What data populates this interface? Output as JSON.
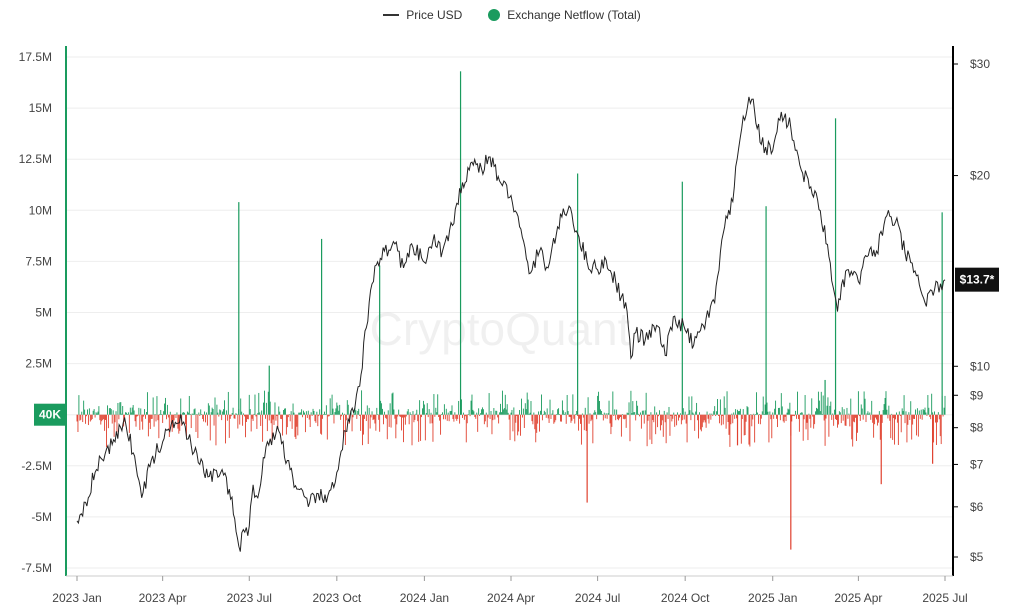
{
  "legend": {
    "price_label": "Price USD",
    "netflow_label": "Exchange Netflow (Total)",
    "price_color": "#333333",
    "netflow_color": "#1a9b5e"
  },
  "watermark": "CryptoQuant",
  "chart_data": {
    "type": "bar+line",
    "x_tick_labels": [
      "2023 Jan",
      "2023 Apr",
      "2023 Jul",
      "2023 Oct",
      "2024 Jan",
      "2024 Apr",
      "2024 Jul",
      "2024 Oct",
      "2025 Jan",
      "2025 Apr",
      "2025 Jul"
    ],
    "left_axis": {
      "ticks": [
        17.5,
        15,
        12.5,
        10,
        7.5,
        5,
        2.5,
        0,
        -2.5,
        -5,
        -7.5
      ],
      "tick_labels": [
        "17.5M",
        "15M",
        "12.5M",
        "10M",
        "7.5M",
        "5M",
        "2.5M",
        "",
        "-2.5M",
        "-5M",
        "-7.5M"
      ],
      "ylim": [
        -7.75,
        18.5
      ],
      "unit": "tokens"
    },
    "right_axis": {
      "scale": "log",
      "ticks": [
        30,
        20,
        10,
        9,
        8,
        7,
        6,
        5
      ],
      "tick_labels": [
        "$30",
        "$20",
        "$10",
        "$9",
        "$8",
        "$7",
        "$6",
        "$5"
      ],
      "ylim": [
        4.8,
        31
      ]
    },
    "current_value_badge": "40K",
    "current_price_badge": "$13.7*",
    "colors": {
      "positive": "#1a9b5e",
      "negative": "#e0402e",
      "price": "#222222",
      "axis_accent": "#1a9b5e"
    },
    "price_series": {
      "name": "Price USD",
      "points": [
        [
          "2023-01-01",
          5.7
        ],
        [
          "2023-01-10",
          6.1
        ],
        [
          "2023-01-20",
          6.8
        ],
        [
          "2023-02-01",
          7.4
        ],
        [
          "2023-02-10",
          7.6
        ],
        [
          "2023-02-20",
          8.3
        ],
        [
          "2023-03-01",
          7.3
        ],
        [
          "2023-03-10",
          6.2
        ],
        [
          "2023-03-20",
          7.1
        ],
        [
          "2023-04-01",
          7.6
        ],
        [
          "2023-04-10",
          8.1
        ],
        [
          "2023-04-20",
          8.4
        ],
        [
          "2023-05-01",
          7.5
        ],
        [
          "2023-05-10",
          7.0
        ],
        [
          "2023-05-20",
          6.7
        ],
        [
          "2023-06-01",
          6.8
        ],
        [
          "2023-06-10",
          6.4
        ],
        [
          "2023-06-20",
          5.2
        ],
        [
          "2023-07-01",
          5.6
        ],
        [
          "2023-07-05",
          6.5
        ],
        [
          "2023-07-10",
          6.2
        ],
        [
          "2023-07-20",
          7.6
        ],
        [
          "2023-08-01",
          7.9
        ],
        [
          "2023-08-10",
          7.1
        ],
        [
          "2023-08-20",
          6.4
        ],
        [
          "2023-09-01",
          6.0
        ],
        [
          "2023-09-10",
          6.3
        ],
        [
          "2023-09-20",
          6.1
        ],
        [
          "2023-10-01",
          6.8
        ],
        [
          "2023-10-10",
          7.9
        ],
        [
          "2023-10-20",
          8.6
        ],
        [
          "2023-10-25",
          9.3
        ],
        [
          "2023-11-01",
          11.5
        ],
        [
          "2023-11-10",
          14.4
        ],
        [
          "2023-11-20",
          15.2
        ],
        [
          "2023-12-01",
          15.6
        ],
        [
          "2023-12-10",
          14.3
        ],
        [
          "2023-12-20",
          15.4
        ],
        [
          "2024-01-01",
          14.6
        ],
        [
          "2024-01-10",
          15.8
        ],
        [
          "2024-01-20",
          15.2
        ],
        [
          "2024-02-01",
          16.8
        ],
        [
          "2024-02-10",
          19.5
        ],
        [
          "2024-02-20",
          21.0
        ],
        [
          "2024-03-01",
          20.5
        ],
        [
          "2024-03-10",
          21.4
        ],
        [
          "2024-03-20",
          19.6
        ],
        [
          "2024-04-01",
          18.6
        ],
        [
          "2024-04-10",
          16.6
        ],
        [
          "2024-04-20",
          14.0
        ],
        [
          "2024-05-01",
          15.2
        ],
        [
          "2024-05-10",
          14.3
        ],
        [
          "2024-05-20",
          16.6
        ],
        [
          "2024-06-01",
          17.9
        ],
        [
          "2024-06-10",
          16.2
        ],
        [
          "2024-06-20",
          14.6
        ],
        [
          "2024-07-01",
          14.2
        ],
        [
          "2024-07-10",
          14.7
        ],
        [
          "2024-07-20",
          13.6
        ],
        [
          "2024-08-01",
          12.2
        ],
        [
          "2024-08-05",
          10.3
        ],
        [
          "2024-08-10",
          11.3
        ],
        [
          "2024-08-20",
          11.0
        ],
        [
          "2024-09-01",
          11.6
        ],
        [
          "2024-09-10",
          10.4
        ],
        [
          "2024-09-20",
          12.0
        ],
        [
          "2024-10-01",
          11.4
        ],
        [
          "2024-10-10",
          10.8
        ],
        [
          "2024-10-20",
          11.6
        ],
        [
          "2024-11-01",
          12.6
        ],
        [
          "2024-11-10",
          16.2
        ],
        [
          "2024-11-20",
          18.2
        ],
        [
          "2024-12-01",
          24.8
        ],
        [
          "2024-12-10",
          26.4
        ],
        [
          "2024-12-20",
          22.4
        ],
        [
          "2025-01-01",
          21.9
        ],
        [
          "2025-01-10",
          25.2
        ],
        [
          "2025-01-20",
          23.8
        ],
        [
          "2025-01-31",
          20.4
        ],
        [
          "2025-02-10",
          19.2
        ],
        [
          "2025-02-20",
          17.6
        ],
        [
          "2025-03-01",
          14.9
        ],
        [
          "2025-03-10",
          12.2
        ],
        [
          "2025-03-20",
          14.2
        ],
        [
          "2025-04-01",
          13.6
        ],
        [
          "2025-04-10",
          14.9
        ],
        [
          "2025-04-20",
          15.2
        ],
        [
          "2025-05-01",
          17.3
        ],
        [
          "2025-05-10",
          16.9
        ],
        [
          "2025-05-20",
          15.1
        ],
        [
          "2025-06-01",
          13.9
        ],
        [
          "2025-06-10",
          12.6
        ],
        [
          "2025-06-20",
          13.2
        ],
        [
          "2025-07-01",
          13.7
        ]
      ]
    },
    "netflow_series": {
      "name": "Exchange Netflow (Total)",
      "unit": "M tokens",
      "spikes": [
        [
          "2023-06-20",
          10.4
        ],
        [
          "2023-07-22",
          2.4
        ],
        [
          "2023-09-15",
          8.6
        ],
        [
          "2023-11-15",
          7.3
        ],
        [
          "2024-02-08",
          16.8
        ],
        [
          "2024-06-10",
          11.8
        ],
        [
          "2024-06-20",
          -4.3
        ],
        [
          "2024-09-28",
          11.4
        ],
        [
          "2024-11-25",
          -1.5
        ],
        [
          "2024-12-25",
          10.2
        ],
        [
          "2025-01-20",
          -6.6
        ],
        [
          "2025-02-25",
          1.7
        ],
        [
          "2025-03-08",
          14.5
        ],
        [
          "2025-04-25",
          -3.4
        ],
        [
          "2025-06-18",
          -2.4
        ],
        [
          "2025-06-28",
          9.9
        ]
      ],
      "typical_inflow_range": [
        0.1,
        1.2
      ],
      "typical_outflow_range": [
        -0.2,
        -1.6
      ]
    }
  }
}
